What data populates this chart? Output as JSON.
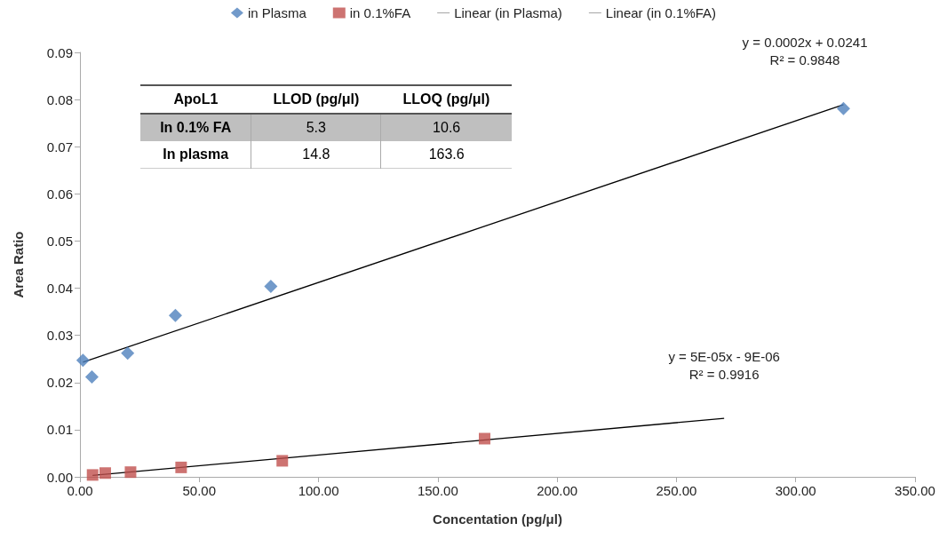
{
  "chart_data": [
    {
      "type": "scatter",
      "xlabel": "Concentation (pg/μl)",
      "ylabel": "Area Ratio",
      "legend": "top",
      "grid": false,
      "xlim": [
        0,
        350
      ],
      "xticks": [
        {
          "value": 0,
          "label": "0.00"
        },
        {
          "value": 50,
          "label": "50.00"
        },
        {
          "value": 100,
          "label": "100.00"
        },
        {
          "value": 150,
          "label": "150.00"
        },
        {
          "value": 200,
          "label": "200.00"
        },
        {
          "value": 250,
          "label": "250.00"
        },
        {
          "value": 300,
          "label": "300.00"
        },
        {
          "value": 350,
          "label": "350.00"
        }
      ],
      "ylim": [
        0,
        0.09
      ],
      "yticks": [
        {
          "value": 0,
          "label": "0.00"
        },
        {
          "value": 0.01,
          "label": "0.01"
        },
        {
          "value": 0.02,
          "label": "0.02"
        },
        {
          "value": 0.03,
          "label": "0.03"
        },
        {
          "value": 0.04,
          "label": "0.04"
        },
        {
          "value": 0.05,
          "label": "0.05"
        },
        {
          "value": 0.06,
          "label": "0.06"
        },
        {
          "value": 0.07,
          "label": "0.07"
        },
        {
          "value": 0.08,
          "label": "0.08"
        },
        {
          "value": 0.09,
          "label": "0.09"
        }
      ],
      "series": [
        {
          "name": "in Plasma",
          "type": "scatter",
          "marker": "diamond",
          "color": "#4f81bd",
          "x": [
            1.25,
            5,
            20,
            40,
            80,
            320
          ],
          "values": [
            0.0247,
            0.0212,
            0.0262,
            0.0342,
            0.0404,
            0.0781
          ]
        },
        {
          "name": "in 0.1%FA",
          "type": "scatter",
          "marker": "square",
          "color": "#c0504d",
          "x": [
            5.3,
            10.6,
            21.2,
            42.4,
            84.8,
            169.6
          ],
          "values": [
            0.0004,
            0.0008,
            0.001,
            0.002,
            0.0034,
            0.0081
          ]
        },
        {
          "name": "Linear (in Plasma)",
          "type": "line",
          "marker": "none",
          "color": "#000000",
          "x": [
            1.25,
            320
          ],
          "values": [
            0.0243,
            0.0789
          ]
        },
        {
          "name": "Linear (in 0.1%FA)",
          "type": "line",
          "marker": "none",
          "color": "#000000",
          "x": [
            5.3,
            270
          ],
          "values": [
            0.0003,
            0.0124
          ]
        }
      ],
      "annotations": [
        "y = 0.0002x + 0.0241\nR² = 0.9848",
        "y = 5E-05x - 9E-06\nR² = 0.9916"
      ]
    },
    {
      "type": "other",
      "title": "ApoL1",
      "categories": [
        "LLOD (pg/μl)",
        "LLOQ (pg/μl)"
      ],
      "y_categories": [
        "In 0.1% FA",
        "In plasma"
      ],
      "cell_labels": [
        [
          "5.3",
          "10.6"
        ],
        [
          "14.8",
          "163.6"
        ]
      ]
    }
  ]
}
